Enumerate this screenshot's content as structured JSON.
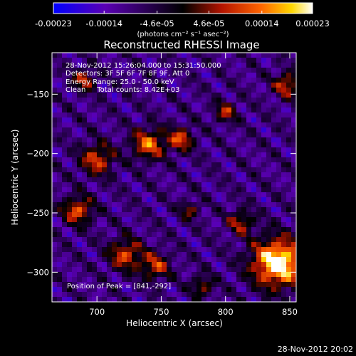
{
  "colorbar": {
    "ticks": [
      "-0.00023",
      "-0.00014",
      "-4.6e-05",
      "4.6e-05",
      "0.00014",
      "0.00023"
    ],
    "tick_values": [
      -0.00023,
      -0.00014,
      -4.6e-05,
      4.6e-05,
      0.00014,
      0.00023
    ],
    "range": [
      -0.00023,
      0.00023
    ],
    "unit_label": "(photons cm⁻² s⁻¹ asec⁻²)"
  },
  "title": "Reconstructed RHESSI Image",
  "annotations": {
    "line1": "28-Nov-2012 15:26:04.000 to 15:31:50.000",
    "line2": "Detectors: 3F 5F 6F 7F 8F 9F, Att 0",
    "line3": "Energy Range: 25.0 - 50.0 keV",
    "line4": "Clean     Total counts: 8.42E+03",
    "peak": "Position of Peak = [841,-292]"
  },
  "axes": {
    "xlabel": "Heliocentric X (arcsec)",
    "ylabel": "Heliocentric Y (arcsec)",
    "xlim": [
      665,
      855
    ],
    "ylim": [
      -325,
      -115
    ],
    "xticks": [
      700,
      750,
      800,
      850
    ],
    "xtick_labels": [
      "700",
      "750",
      "800",
      "850"
    ],
    "yticks": [
      -300,
      -250,
      -200,
      -150
    ],
    "ytick_labels": [
      "−300",
      "−250",
      "−200",
      "−150"
    ]
  },
  "peak_position": [
    841,
    -292
  ],
  "sources": [
    {
      "x": 841,
      "y": -292,
      "r": 14,
      "amp": 1.0
    },
    {
      "x": 740,
      "y": -192,
      "r": 9,
      "amp": 0.62
    },
    {
      "x": 765,
      "y": -188,
      "r": 7,
      "amp": 0.55
    },
    {
      "x": 700,
      "y": -205,
      "r": 9,
      "amp": 0.55
    },
    {
      "x": 685,
      "y": -248,
      "r": 8,
      "amp": 0.6
    },
    {
      "x": 722,
      "y": -285,
      "r": 9,
      "amp": 0.55
    },
    {
      "x": 745,
      "y": -295,
      "r": 8,
      "amp": 0.5
    },
    {
      "x": 800,
      "y": -165,
      "r": 6,
      "amp": 0.45
    },
    {
      "x": 848,
      "y": -142,
      "r": 7,
      "amp": 0.55
    },
    {
      "x": 690,
      "y": -138,
      "r": 6,
      "amp": 0.5
    },
    {
      "x": 812,
      "y": -258,
      "r": 7,
      "amp": 0.45
    },
    {
      "x": 772,
      "y": -248,
      "r": 5,
      "amp": 0.4
    },
    {
      "x": 782,
      "y": -312,
      "r": 6,
      "amp": 0.42
    }
  ],
  "footer": "28-Nov-2012 20:02"
}
